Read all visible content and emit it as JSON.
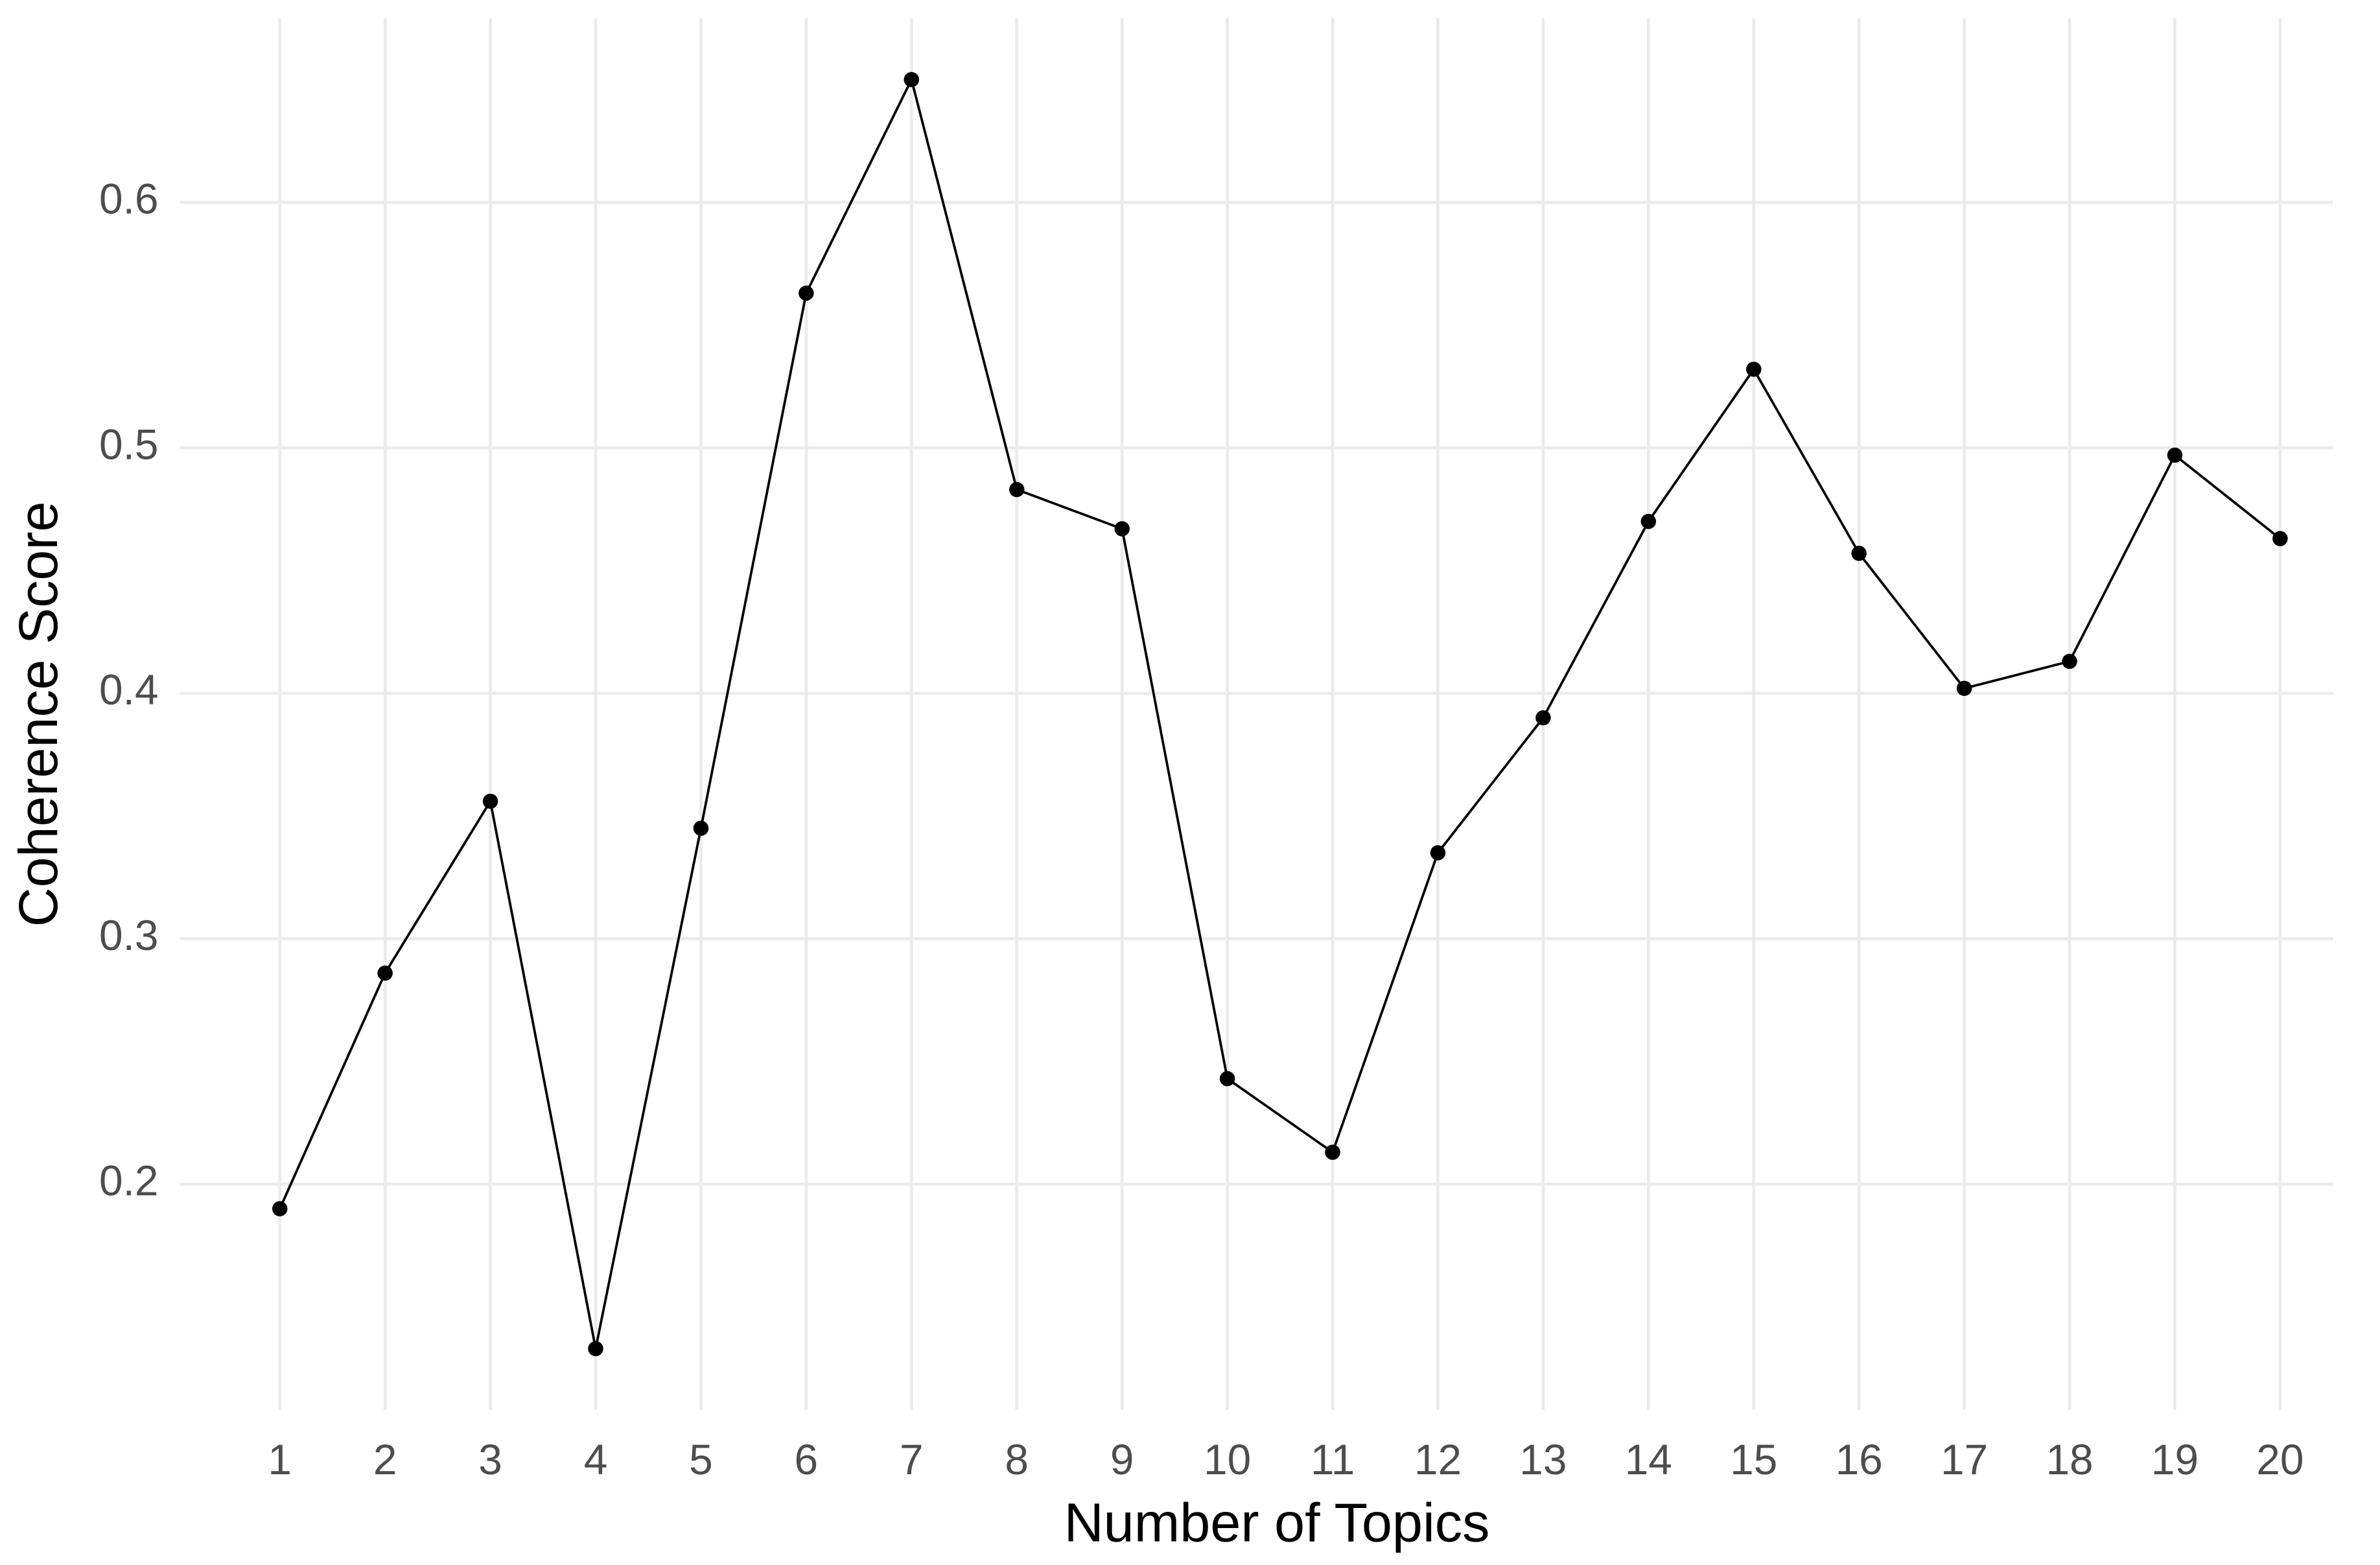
{
  "chart_data": {
    "type": "line",
    "x_label": "Number of Topics",
    "y_label": "Coherence Score",
    "x": [
      1,
      2,
      3,
      4,
      5,
      6,
      7,
      8,
      9,
      10,
      11,
      12,
      13,
      14,
      15,
      16,
      17,
      18,
      19,
      20
    ],
    "series": [
      {
        "color": "#000000",
        "values": [
          0.19,
          0.286,
          0.356,
          0.133,
          0.345,
          0.563,
          0.65,
          0.483,
          0.467,
          0.243,
          0.213,
          0.335,
          0.39,
          0.47,
          0.532,
          0.457,
          0.402,
          0.413,
          0.497,
          0.463
        ]
      }
    ],
    "xlim": [
      0.05,
      20.5
    ],
    "ylim": [
      0.108,
      0.675
    ],
    "xticks": [
      1,
      2,
      3,
      4,
      5,
      6,
      7,
      8,
      9,
      10,
      11,
      12,
      13,
      14,
      15,
      16,
      17,
      18,
      19,
      20
    ],
    "yticks": [
      0.2,
      0.3,
      0.4,
      0.5,
      0.6
    ],
    "grid": true
  }
}
